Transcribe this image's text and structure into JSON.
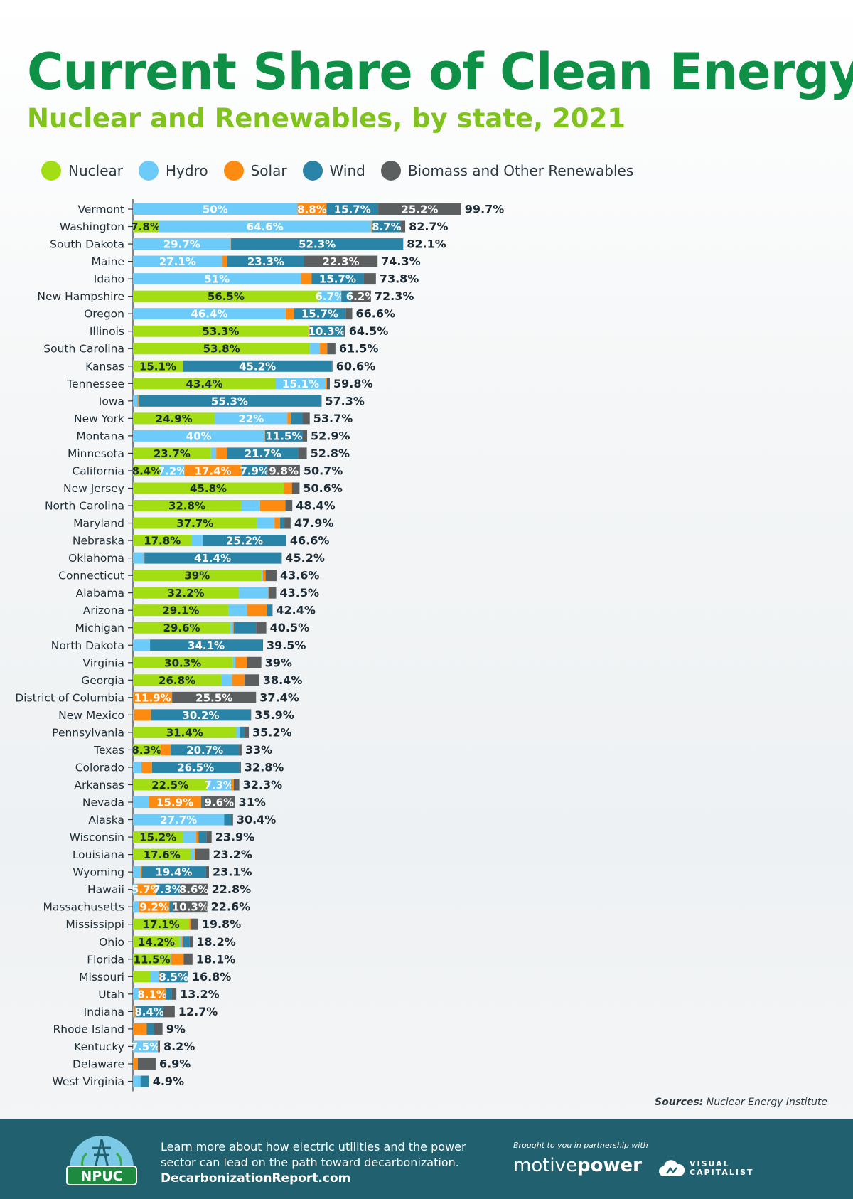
{
  "header": {
    "title": "Current Share of Clean Energy",
    "subtitle": "Nuclear and Renewables, by state, 2021"
  },
  "legend": [
    {
      "name": "Nuclear",
      "color": "#a3dd13"
    },
    {
      "name": "Hydro",
      "color": "#6ccbf8"
    },
    {
      "name": "Solar",
      "color": "#fd8a11"
    },
    {
      "name": "Wind",
      "color": "#2a84a7"
    },
    {
      "name": "Biomass and Other Renewables",
      "color": "#5b5f60"
    }
  ],
  "chart_data": {
    "type": "bar",
    "orientation": "horizontal",
    "stacked": true,
    "unit": "%",
    "xlim": [
      0,
      100
    ],
    "series_names": [
      "Nuclear",
      "Hydro",
      "Solar",
      "Wind",
      "Biomass and Other Renewables"
    ],
    "rows": [
      {
        "state": "Vermont",
        "total": "99.7%",
        "values": [
          0,
          50,
          8.8,
          15.7,
          25.2
        ],
        "labels": [
          "",
          "50%",
          "8.8%",
          "15.7%",
          "25.2%"
        ]
      },
      {
        "state": "Washington",
        "total": "82.7%",
        "values": [
          7.8,
          64.6,
          0.3,
          8.7,
          1.3
        ],
        "labels": [
          "7.8%",
          "64.6%",
          "",
          "8.7%",
          ""
        ]
      },
      {
        "state": "South Dakota",
        "total": "82.1%",
        "values": [
          0,
          29.7,
          0.1,
          52.3,
          0
        ],
        "labels": [
          "",
          "29.7%",
          "",
          "52.3%",
          ""
        ]
      },
      {
        "state": "Maine",
        "total": "74.3%",
        "values": [
          0,
          27.1,
          1.6,
          23.3,
          22.3
        ],
        "labels": [
          "",
          "27.1%",
          "",
          "23.3%",
          "22.3%"
        ]
      },
      {
        "state": "Idaho",
        "total": "73.8%",
        "values": [
          0,
          51,
          3.3,
          15.7,
          3.8
        ],
        "labels": [
          "",
          "51%",
          "",
          "15.7%",
          ""
        ]
      },
      {
        "state": "New Hampshire",
        "total": "72.3%",
        "values": [
          56.5,
          6.7,
          0.1,
          2.8,
          6.2
        ],
        "labels": [
          "56.5%",
          "6.7%",
          "",
          "",
          "6.2%"
        ]
      },
      {
        "state": "Oregon",
        "total": "66.6%",
        "values": [
          0,
          46.4,
          2.5,
          15.7,
          2
        ],
        "labels": [
          "",
          "46.4%",
          "",
          "15.7%",
          ""
        ]
      },
      {
        "state": "Illinois",
        "total": "64.5%",
        "values": [
          53.3,
          0.1,
          0.3,
          10.3,
          0.5
        ],
        "labels": [
          "53.3%",
          "",
          "",
          "10.3%",
          ""
        ]
      },
      {
        "state": "South Carolina",
        "total": "61.5%",
        "values": [
          53.8,
          3,
          2.2,
          0,
          2.5
        ],
        "labels": [
          "53.8%",
          "",
          "",
          "",
          ""
        ]
      },
      {
        "state": "Kansas",
        "total": "60.6%",
        "values": [
          15.1,
          0,
          0.1,
          45.2,
          0.2
        ],
        "labels": [
          "15.1%",
          "",
          "",
          "45.2%",
          ""
        ]
      },
      {
        "state": "Tennessee",
        "total": "59.8%",
        "values": [
          43.4,
          15.1,
          0.4,
          0,
          0.9
        ],
        "labels": [
          "43.4%",
          "15.1%",
          "",
          "",
          ""
        ]
      },
      {
        "state": "Iowa",
        "total": "57.3%",
        "values": [
          0,
          1.4,
          0.3,
          55.3,
          0.3
        ],
        "labels": [
          "",
          "",
          "",
          "55.3%",
          ""
        ]
      },
      {
        "state": "New York",
        "total": "53.7%",
        "values": [
          24.9,
          22,
          1,
          3.6,
          2.2
        ],
        "labels": [
          "24.9%",
          "22%",
          "",
          "",
          ""
        ]
      },
      {
        "state": "Montana",
        "total": "52.9%",
        "values": [
          0,
          40,
          0.1,
          11.5,
          1.3
        ],
        "labels": [
          "",
          "40%",
          "",
          "11.5%",
          ""
        ]
      },
      {
        "state": "Minnesota",
        "total": "52.8%",
        "values": [
          23.7,
          1.6,
          3.3,
          21.7,
          2.5
        ],
        "labels": [
          "23.7%",
          "",
          "",
          "21.7%",
          ""
        ]
      },
      {
        "state": "California",
        "total": "50.7%",
        "values": [
          8.4,
          7.2,
          17.4,
          7.9,
          9.8
        ],
        "labels": [
          "8.4%",
          "7.2%",
          "17.4%",
          "7.9%",
          "9.8%"
        ]
      },
      {
        "state": "New Jersey",
        "total": "50.6%",
        "values": [
          45.8,
          0,
          2.5,
          0,
          2.3
        ],
        "labels": [
          "45.8%",
          "",
          "",
          "",
          ""
        ]
      },
      {
        "state": "North Carolina",
        "total": "48.4%",
        "values": [
          32.8,
          5.8,
          7.7,
          0.2,
          1.9
        ],
        "labels": [
          "32.8%",
          "",
          "",
          "",
          ""
        ]
      },
      {
        "state": "Maryland",
        "total": "47.9%",
        "values": [
          37.7,
          5.3,
          1.7,
          1.3,
          1.9
        ],
        "labels": [
          "37.7%",
          "",
          "",
          "",
          ""
        ]
      },
      {
        "state": "Nebraska",
        "total": "46.6%",
        "values": [
          17.8,
          3.4,
          0.1,
          25.2,
          0.1
        ],
        "labels": [
          "17.8%",
          "",
          "",
          "25.2%",
          ""
        ]
      },
      {
        "state": "Oklahoma",
        "total": "45.2%",
        "values": [
          0,
          3.4,
          0.1,
          41.4,
          0.3
        ],
        "labels": [
          "",
          "",
          "",
          "41.4%",
          ""
        ]
      },
      {
        "state": "Connecticut",
        "total": "43.6%",
        "values": [
          39,
          0.5,
          0.7,
          0.1,
          3.3
        ],
        "labels": [
          "39%",
          "",
          "",
          "",
          ""
        ]
      },
      {
        "state": "Alabama",
        "total": "43.5%",
        "values": [
          32.2,
          8.8,
          0.3,
          0,
          2.2
        ],
        "labels": [
          "32.2%",
          "",
          "",
          "",
          ""
        ]
      },
      {
        "state": "Arizona",
        "total": "42.4%",
        "values": [
          29.1,
          5.5,
          6.2,
          1.4,
          0.2
        ],
        "labels": [
          "29.1%",
          "",
          "",
          "",
          ""
        ]
      },
      {
        "state": "Michigan",
        "total": "40.5%",
        "values": [
          29.6,
          0.7,
          0.3,
          6.8,
          3.1
        ],
        "labels": [
          "29.6%",
          "",
          "",
          "",
          ""
        ]
      },
      {
        "state": "North Dakota",
        "total": "39.5%",
        "values": [
          0,
          5.2,
          0,
          34.1,
          0.2
        ],
        "labels": [
          "",
          "",
          "",
          "34.1%",
          ""
        ]
      },
      {
        "state": "Virginia",
        "total": "39%",
        "values": [
          30.3,
          0.8,
          3.6,
          0,
          4.3
        ],
        "labels": [
          "30.3%",
          "",
          "",
          "",
          ""
        ]
      },
      {
        "state": "Georgia",
        "total": "38.4%",
        "values": [
          26.8,
          3.3,
          3.8,
          0,
          4.5
        ],
        "labels": [
          "26.8%",
          "",
          "",
          "",
          ""
        ]
      },
      {
        "state": "District of Columbia",
        "total": "37.4%",
        "values": [
          0,
          0,
          11.9,
          0,
          25.5
        ],
        "labels": [
          "",
          "",
          "11.9%",
          "",
          "25.5%"
        ]
      },
      {
        "state": "New Mexico",
        "total": "35.9%",
        "values": [
          0,
          0.3,
          5.2,
          30.2,
          0.2
        ],
        "labels": [
          "",
          "",
          "",
          "30.2%",
          ""
        ]
      },
      {
        "state": "Pennsylvania",
        "total": "35.2%",
        "values": [
          31.4,
          1,
          0.1,
          1.4,
          1.3
        ],
        "labels": [
          "31.4%",
          "",
          "",
          "",
          ""
        ]
      },
      {
        "state": "Texas",
        "total": "33%",
        "values": [
          8.3,
          0.1,
          3.1,
          20.7,
          0.8
        ],
        "labels": [
          "8.3%",
          "",
          "",
          "20.7%",
          ""
        ]
      },
      {
        "state": "Colorado",
        "total": "32.8%",
        "values": [
          0,
          2.6,
          3.2,
          26.5,
          0.5
        ],
        "labels": [
          "",
          "",
          "",
          "26.5%",
          ""
        ]
      },
      {
        "state": "Arkansas",
        "total": "32.3%",
        "values": [
          22.5,
          7.3,
          0.8,
          0,
          1.7
        ],
        "labels": [
          "22.5%",
          "7.3%",
          "",
          "",
          ""
        ]
      },
      {
        "state": "Nevada",
        "total": "31%",
        "values": [
          0,
          4.8,
          15.9,
          0.7,
          9.6
        ],
        "labels": [
          "",
          "",
          "15.9%",
          "",
          "9.6%"
        ]
      },
      {
        "state": "Alaska",
        "total": "30.4%",
        "values": [
          0,
          27.7,
          0,
          2.2,
          0.5
        ],
        "labels": [
          "",
          "27.7%",
          "",
          "",
          ""
        ]
      },
      {
        "state": "Wisconsin",
        "total": "23.9%",
        "values": [
          15.2,
          4,
          0.7,
          2.4,
          1.6
        ],
        "labels": [
          "15.2%",
          "",
          "",
          "",
          ""
        ]
      },
      {
        "state": "Louisiana",
        "total": "23.2%",
        "values": [
          17.6,
          1.1,
          0.3,
          0,
          4.2
        ],
        "labels": [
          "17.6%",
          "",
          "",
          "",
          ""
        ]
      },
      {
        "state": "Wyoming",
        "total": "23.1%",
        "values": [
          0,
          2.3,
          0.4,
          19.4,
          1
        ],
        "labels": [
          "",
          "",
          "",
          "19.4%",
          ""
        ]
      },
      {
        "state": "Hawaii",
        "total": "22.8%",
        "values": [
          0,
          1.2,
          5.7,
          7.3,
          8.6
        ],
        "labels": [
          "",
          "",
          "5.7%",
          "7.3%",
          "8.6%"
        ]
      },
      {
        "state": "Massachusetts",
        "total": "22.6%",
        "values": [
          0,
          1.9,
          9.2,
          1.2,
          10.3
        ],
        "labels": [
          "",
          "",
          "9.2%",
          "",
          "10.3%"
        ]
      },
      {
        "state": "Mississippi",
        "total": "19.8%",
        "values": [
          17.1,
          0,
          0.5,
          0,
          2.2
        ],
        "labels": [
          "17.1%",
          "",
          "",
          "",
          ""
        ]
      },
      {
        "state": "Ohio",
        "total": "18.2%",
        "values": [
          14.2,
          0.6,
          0.5,
          1.9,
          1
        ],
        "labels": [
          "14.2%",
          "",
          "",
          "",
          ""
        ]
      },
      {
        "state": "Florida",
        "total": "18.1%",
        "values": [
          11.5,
          0.1,
          3.8,
          0,
          2.7
        ],
        "labels": [
          "11.5%",
          "",
          "",
          "",
          ""
        ]
      },
      {
        "state": "Missouri",
        "total": "16.8%",
        "values": [
          5.4,
          2.5,
          0.2,
          8.5,
          0.2
        ],
        "labels": [
          "",
          "",
          "",
          "8.5%",
          ""
        ]
      },
      {
        "state": "Utah",
        "total": "13.2%",
        "values": [
          0,
          1.8,
          8.1,
          1.8,
          1.5
        ],
        "labels": [
          "",
          "",
          "8.1%",
          "",
          ""
        ]
      },
      {
        "state": "Indiana",
        "total": "12.7%",
        "values": [
          0,
          0.3,
          0.5,
          8.4,
          3.5
        ],
        "labels": [
          "",
          "",
          "",
          "8.4%",
          ""
        ]
      },
      {
        "state": "Rhode Island",
        "total": "9%",
        "values": [
          0,
          0,
          4.2,
          2.2,
          2.6
        ],
        "labels": [
          "",
          "",
          "",
          "",
          ""
        ]
      },
      {
        "state": "Kentucky",
        "total": "8.2%",
        "values": [
          0,
          7.5,
          0.1,
          0,
          0.6
        ],
        "labels": [
          "",
          "7.5%",
          "",
          "",
          ""
        ]
      },
      {
        "state": "Delaware",
        "total": "6.9%",
        "values": [
          0,
          0,
          1.5,
          0,
          5.4
        ],
        "labels": [
          "",
          "",
          "",
          "",
          ""
        ]
      },
      {
        "state": "West Virginia",
        "total": "4.9%",
        "values": [
          0,
          2.2,
          0.1,
          2.6,
          0
        ],
        "labels": [
          "",
          "",
          "",
          "",
          ""
        ]
      }
    ]
  },
  "sources": {
    "label": "Sources:",
    "text": " Nuclear Energy Institute"
  },
  "footer": {
    "logo_text": "NPUC",
    "line1": "Learn more about how electric utilities and the power",
    "line2": "sector can lead on the path toward decarbonization.",
    "url": "DecarbonizationReport.com",
    "partner_text": "Brought to you in partnership with",
    "motive_a": "motive",
    "motive_b": "power",
    "vc_line1": "VISUAL",
    "vc_line2": "CAPITALIST"
  }
}
